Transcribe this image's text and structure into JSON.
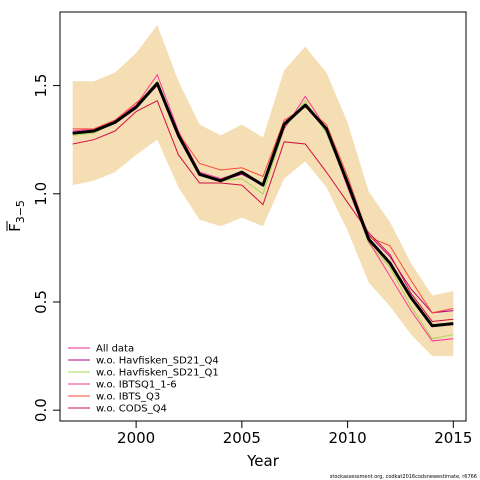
{
  "chart_data": {
    "type": "line",
    "xlabel": "Year",
    "ylabel_base": "F",
    "ylabel_subscript": "3−5",
    "xlim": [
      1996.4,
      2015.6
    ],
    "ylim": [
      -0.05,
      1.84
    ],
    "xticks": [
      2000,
      2005,
      2010,
      2015
    ],
    "yticks": [
      0.0,
      0.5,
      1.0,
      1.5
    ],
    "ytick_labels": [
      "0.0",
      "0.5",
      "1.0",
      "1.5"
    ],
    "grid": false,
    "legend_position": "bottom-left",
    "footnote": "stockassessment.org, codkat2016codsnewestimate, r6766",
    "x": [
      1997,
      1998,
      1999,
      2000,
      2001,
      2002,
      2003,
      2004,
      2005,
      2006,
      2007,
      2008,
      2009,
      2010,
      2011,
      2012,
      2013,
      2014,
      2015
    ],
    "band": {
      "color": "#f5deb3",
      "lower": [
        1.04,
        1.06,
        1.1,
        1.18,
        1.25,
        1.03,
        0.88,
        0.85,
        0.89,
        0.85,
        1.07,
        1.15,
        1.03,
        0.83,
        0.59,
        0.48,
        0.35,
        0.25,
        0.25
      ],
      "upper": [
        1.52,
        1.52,
        1.56,
        1.65,
        1.78,
        1.52,
        1.32,
        1.27,
        1.32,
        1.26,
        1.57,
        1.68,
        1.56,
        1.33,
        1.01,
        0.87,
        0.68,
        0.53,
        0.55
      ]
    },
    "main_series": {
      "color": "#000000",
      "values": [
        1.28,
        1.29,
        1.33,
        1.4,
        1.51,
        1.27,
        1.09,
        1.06,
        1.1,
        1.04,
        1.32,
        1.41,
        1.3,
        1.05,
        0.79,
        0.68,
        0.52,
        0.39,
        0.4
      ]
    },
    "series": [
      {
        "name": "All data",
        "color": "#e7298a",
        "values": [
          1.28,
          1.29,
          1.33,
          1.4,
          1.51,
          1.27,
          1.09,
          1.06,
          1.1,
          1.04,
          1.32,
          1.41,
          1.3,
          1.05,
          0.79,
          0.68,
          0.52,
          0.39,
          0.4
        ]
      },
      {
        "name": "w.o. Havfisken_SD21_Q4",
        "color": "#b3008c",
        "values": [
          1.28,
          1.29,
          1.33,
          1.4,
          1.5,
          1.26,
          1.09,
          1.06,
          1.09,
          1.04,
          1.33,
          1.41,
          1.29,
          1.05,
          0.81,
          0.71,
          0.56,
          0.45,
          0.46
        ]
      },
      {
        "name": "w.o. Havfisken_SD21_Q1",
        "color": "#a6d854",
        "values": [
          1.27,
          1.28,
          1.33,
          1.41,
          1.52,
          1.27,
          1.09,
          1.06,
          1.07,
          1.0,
          1.3,
          1.43,
          1.28,
          1.04,
          0.77,
          0.66,
          0.48,
          0.33,
          0.35
        ]
      },
      {
        "name": "w.o. IBTSQ1_1-6",
        "color": "#ff3399",
        "values": [
          1.29,
          1.3,
          1.34,
          1.41,
          1.55,
          1.29,
          1.1,
          1.07,
          1.1,
          1.04,
          1.3,
          1.45,
          1.3,
          1.03,
          0.78,
          0.62,
          0.46,
          0.32,
          0.33
        ]
      },
      {
        "name": "w.o. IBTS_Q3",
        "color": "#f94a3a",
        "values": [
          1.3,
          1.3,
          1.34,
          1.42,
          1.5,
          1.28,
          1.14,
          1.11,
          1.12,
          1.08,
          1.34,
          1.4,
          1.32,
          1.08,
          0.8,
          0.76,
          0.6,
          0.45,
          0.47
        ]
      },
      {
        "name": "w.o. CODS_Q4",
        "color": "#d10f3f",
        "values": [
          1.23,
          1.25,
          1.29,
          1.38,
          1.43,
          1.18,
          1.05,
          1.05,
          1.04,
          0.95,
          1.24,
          1.23,
          1.1,
          0.96,
          0.82,
          0.72,
          0.54,
          0.41,
          0.42
        ]
      }
    ]
  }
}
